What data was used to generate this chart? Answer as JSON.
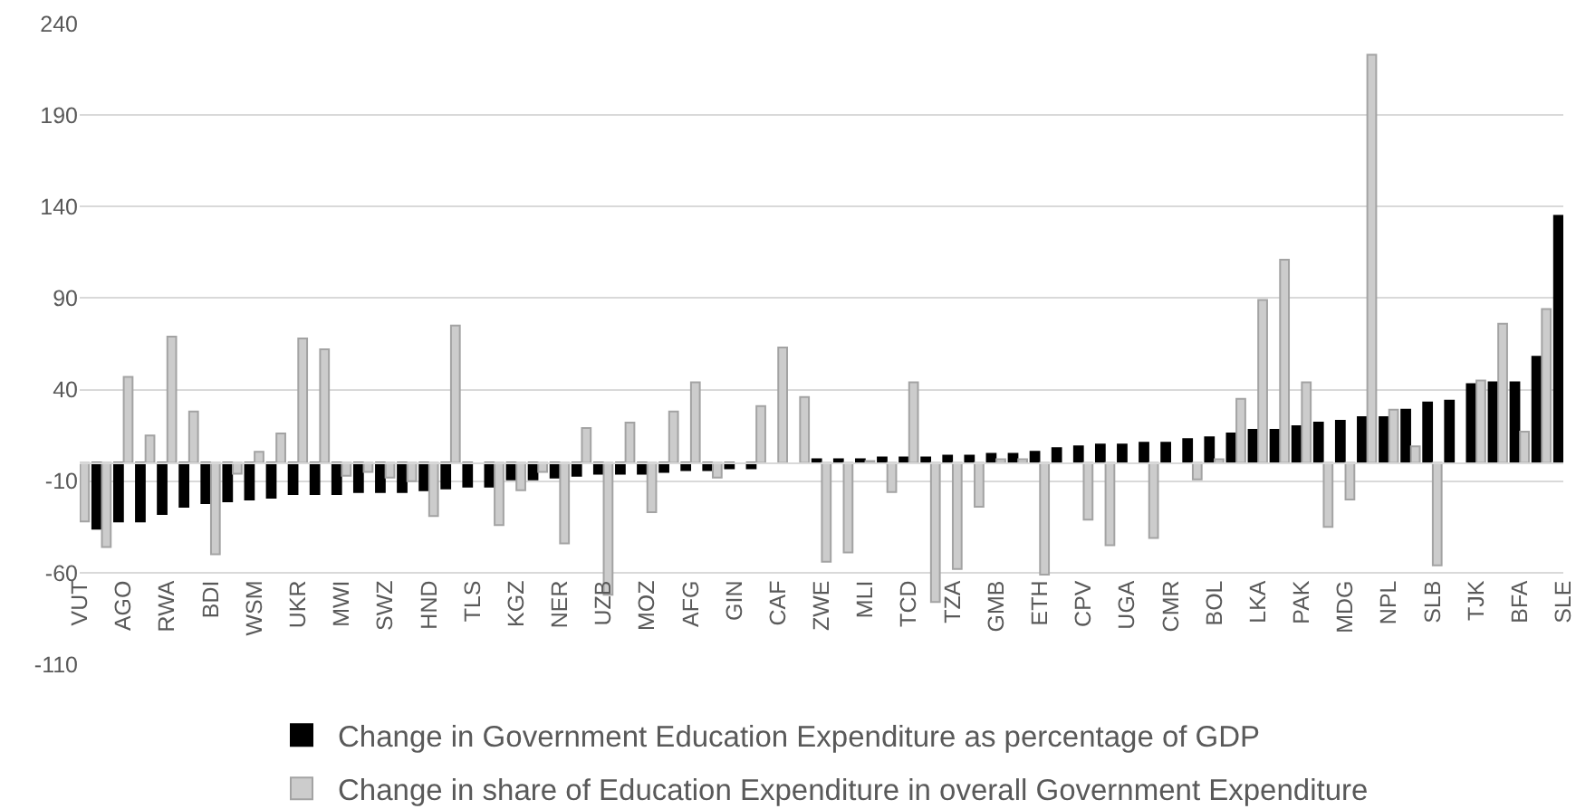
{
  "chart_data": {
    "type": "bar",
    "categories": [
      "VUT",
      null,
      "AGO",
      null,
      "RWA",
      null,
      "BDI",
      null,
      "WSM",
      null,
      "UKR",
      null,
      "MWI",
      null,
      "SWZ",
      null,
      "HND",
      null,
      "TLS",
      null,
      "KGZ",
      null,
      "NER",
      null,
      "UZB",
      null,
      "MOZ",
      null,
      "AFG",
      null,
      "GIN",
      null,
      "CAF",
      null,
      "ZWE",
      null,
      "MLI",
      null,
      "TCD",
      null,
      "TZA",
      null,
      "GMB",
      null,
      "ETH",
      null,
      "CPV",
      null,
      "UGA",
      null,
      "CMR",
      null,
      "BOL",
      null,
      "LKA",
      null,
      "PAK",
      null,
      "MDG",
      null,
      "NPL",
      null,
      "SLB",
      null,
      "TJK",
      null,
      "BFA",
      null,
      "SLE"
    ],
    "series": [
      {
        "name": "Change in Government Education Expenditure as percentage of GDP",
        "color": "#000000",
        "values": [
          null,
          -36,
          -32,
          -32,
          -28,
          -24,
          -22,
          -21,
          -20,
          -19,
          -17,
          -17,
          -17,
          -16,
          -16,
          -16,
          -15,
          -14,
          -13,
          -13,
          -9,
          -9,
          -8,
          -7,
          -6,
          -6,
          -6,
          -5,
          -4,
          -4,
          -3,
          -3,
          null,
          null,
          2,
          2,
          2,
          3,
          3,
          3,
          4,
          4,
          5,
          5,
          6,
          8,
          9,
          10,
          10,
          11,
          11,
          13,
          14,
          16,
          18,
          18,
          20,
          22,
          23,
          25,
          25,
          29,
          33,
          34,
          43,
          44,
          44,
          58,
          135
        ]
      },
      {
        "name": "Change in share of Education Expenditure in overall Government Expenditure",
        "color": "#cccccc",
        "values": [
          -32,
          -46,
          47,
          15,
          69,
          28,
          -50,
          -6,
          6,
          16,
          68,
          62,
          -7,
          -5,
          -8,
          -10,
          -29,
          75,
          null,
          -34,
          -15,
          -5,
          -44,
          19,
          -72,
          22,
          -27,
          28,
          44,
          -8,
          null,
          31,
          63,
          36,
          -54,
          -49,
          1,
          -16,
          44,
          -76,
          -58,
          -24,
          2,
          2,
          -61,
          null,
          -31,
          -45,
          null,
          -41,
          null,
          -9,
          2,
          35,
          89,
          111,
          44,
          -35,
          -20,
          223,
          29,
          9,
          -56,
          null,
          45,
          76,
          17,
          84,
          null
        ]
      }
    ],
    "ylim": [
      -110,
      240
    ],
    "yticks": [
      -110,
      -60,
      -10,
      40,
      90,
      140,
      190,
      240
    ],
    "grid": "y",
    "legend": "bottom"
  }
}
